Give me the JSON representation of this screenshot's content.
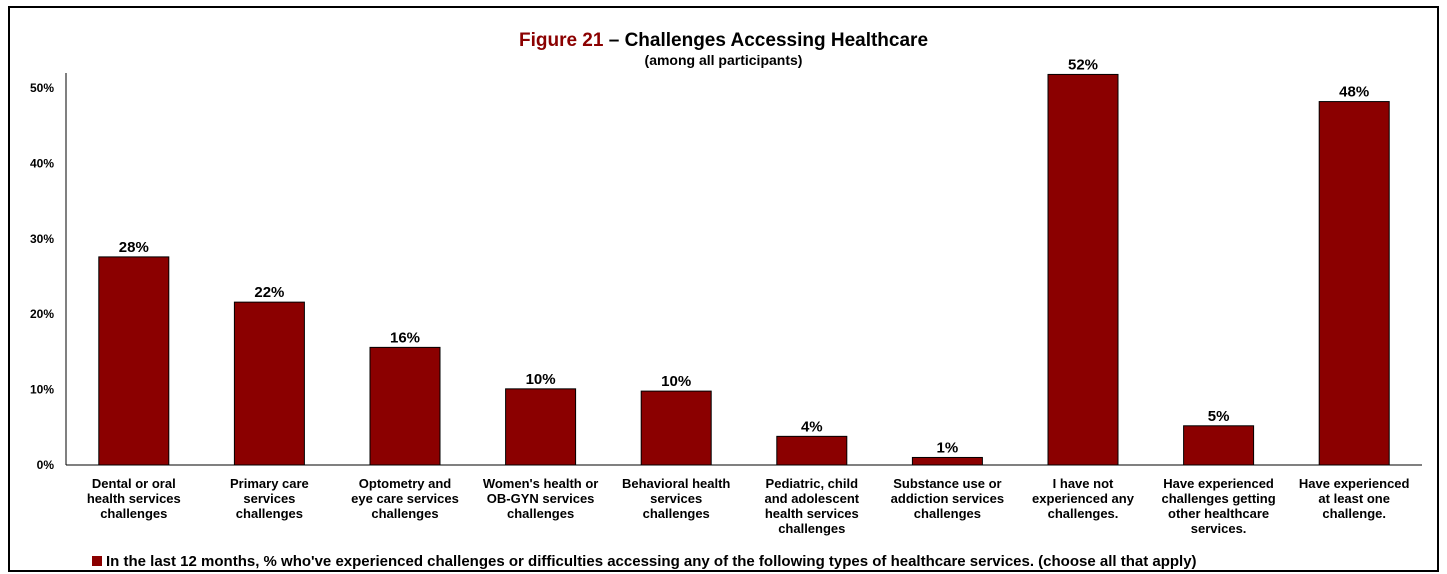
{
  "colors": {
    "bar": "#8b0000",
    "figure_label": "#8b0000"
  },
  "chart_data": {
    "type": "bar",
    "figure_label": "Figure 21",
    "title": "– Challenges Accessing Healthcare",
    "subtitle": "(among all participants)",
    "categories": [
      [
        "Dental or oral",
        "health services",
        "challenges"
      ],
      [
        "Primary care",
        "services",
        "challenges"
      ],
      [
        "Optometry and",
        "eye care services",
        "challenges"
      ],
      [
        "Women's health or",
        "OB-GYN services",
        "challenges"
      ],
      [
        "Behavioral health",
        "services",
        "challenges"
      ],
      [
        "Pediatric, child",
        "and adolescent",
        "health services",
        "challenges"
      ],
      [
        "Substance use or",
        "addiction services",
        "challenges"
      ],
      [
        "I have not",
        "experienced any",
        "challenges."
      ],
      [
        "Have experienced",
        "challenges getting",
        "other healthcare",
        "services."
      ],
      [
        "Have experienced",
        "at least one",
        "challenge."
      ]
    ],
    "values": [
      27.6,
      21.6,
      15.6,
      10.1,
      9.8,
      3.8,
      1.0,
      51.8,
      5.2,
      48.2
    ],
    "data_labels": [
      "28%",
      "22%",
      "16%",
      "10%",
      "10%",
      "4%",
      "1%",
      "52%",
      "5%",
      "48%"
    ],
    "yticks": [
      0,
      10,
      20,
      30,
      40,
      50
    ],
    "ytick_labels": [
      "0%",
      "10%",
      "20%",
      "30%",
      "40%",
      "50%"
    ],
    "ylim": [
      0,
      52
    ],
    "grid": false,
    "legend": {
      "position": "bottom",
      "entries": [
        "In the last 12 months, % who've experienced challenges or difficulties accessing any of the following types of healthcare services. (choose all that apply)"
      ]
    }
  }
}
